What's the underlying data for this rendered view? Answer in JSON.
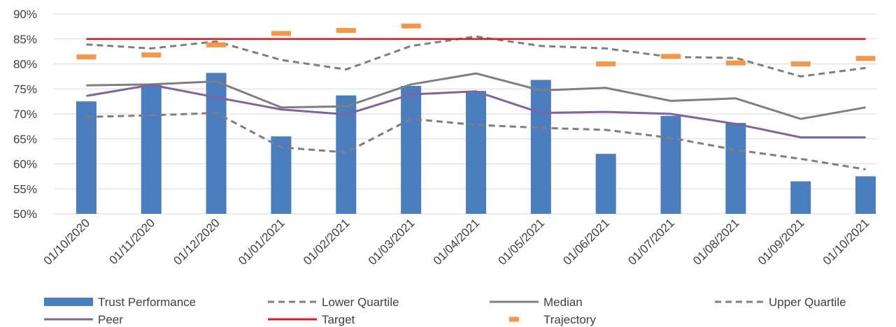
{
  "chart_data": {
    "type": "bar",
    "categories": [
      "01/10/2020",
      "01/11/2020",
      "01/12/2020",
      "01/01/2021",
      "01/02/2021",
      "01/03/2021",
      "01/04/2021",
      "01/05/2021",
      "01/06/2021",
      "01/07/2021",
      "01/08/2021",
      "01/09/2021",
      "01/10/2021"
    ],
    "y_ticks": [
      "50%",
      "55%",
      "60%",
      "65%",
      "70%",
      "75%",
      "80%",
      "85%",
      "90%"
    ],
    "ylim": [
      50,
      90
    ],
    "grid": true,
    "legend_position": "bottom",
    "series": [
      {
        "key": "trust",
        "name": "Trust Performance",
        "type": "bar",
        "color": "#4a7ebf",
        "values": [
          72.5,
          75.8,
          78.2,
          65.5,
          73.7,
          75.6,
          74.6,
          76.8,
          62.0,
          69.6,
          68.2,
          56.5,
          57.5
        ]
      },
      {
        "key": "lower",
        "name": "Lower Quartile",
        "type": "line",
        "style": "dashed",
        "color": "#7f7f7f",
        "values": [
          69.4,
          69.7,
          70.2,
          63.3,
          62.3,
          69.0,
          67.8,
          67.2,
          66.8,
          65.2,
          62.8,
          61.0,
          58.9
        ]
      },
      {
        "key": "median",
        "name": "Median",
        "type": "line",
        "style": "solid",
        "color": "#7f7f7f",
        "values": [
          75.7,
          75.9,
          76.5,
          71.3,
          71.5,
          75.9,
          78.1,
          74.7,
          75.2,
          72.6,
          73.1,
          69.0,
          71.3
        ]
      },
      {
        "key": "upper",
        "name": "Upper Quartile",
        "type": "line",
        "style": "dashed",
        "color": "#7f7f7f",
        "values": [
          83.9,
          83.1,
          84.5,
          80.8,
          78.9,
          83.6,
          85.5,
          83.6,
          83.1,
          81.4,
          81.2,
          77.5,
          79.2
        ]
      },
      {
        "key": "peer",
        "name": "Peer",
        "type": "line",
        "style": "solid",
        "color": "#8064a2",
        "values": [
          73.6,
          75.8,
          73.3,
          70.9,
          69.9,
          73.9,
          74.5,
          70.2,
          70.4,
          70.0,
          68.0,
          65.3,
          65.3
        ]
      },
      {
        "key": "target",
        "name": "Target",
        "type": "line",
        "style": "solid",
        "color": "#e8141b",
        "values": [
          85,
          85,
          85,
          85,
          85,
          85,
          85,
          85,
          85,
          85,
          85,
          85,
          85
        ]
      },
      {
        "key": "trajectory",
        "name": "Trajectory",
        "type": "marker",
        "color": "#f79646",
        "values": [
          81.4,
          81.8,
          83.8,
          86.1,
          86.7,
          87.6,
          null,
          null,
          80.0,
          81.5,
          80.2,
          80.0,
          81.1
        ]
      }
    ]
  }
}
